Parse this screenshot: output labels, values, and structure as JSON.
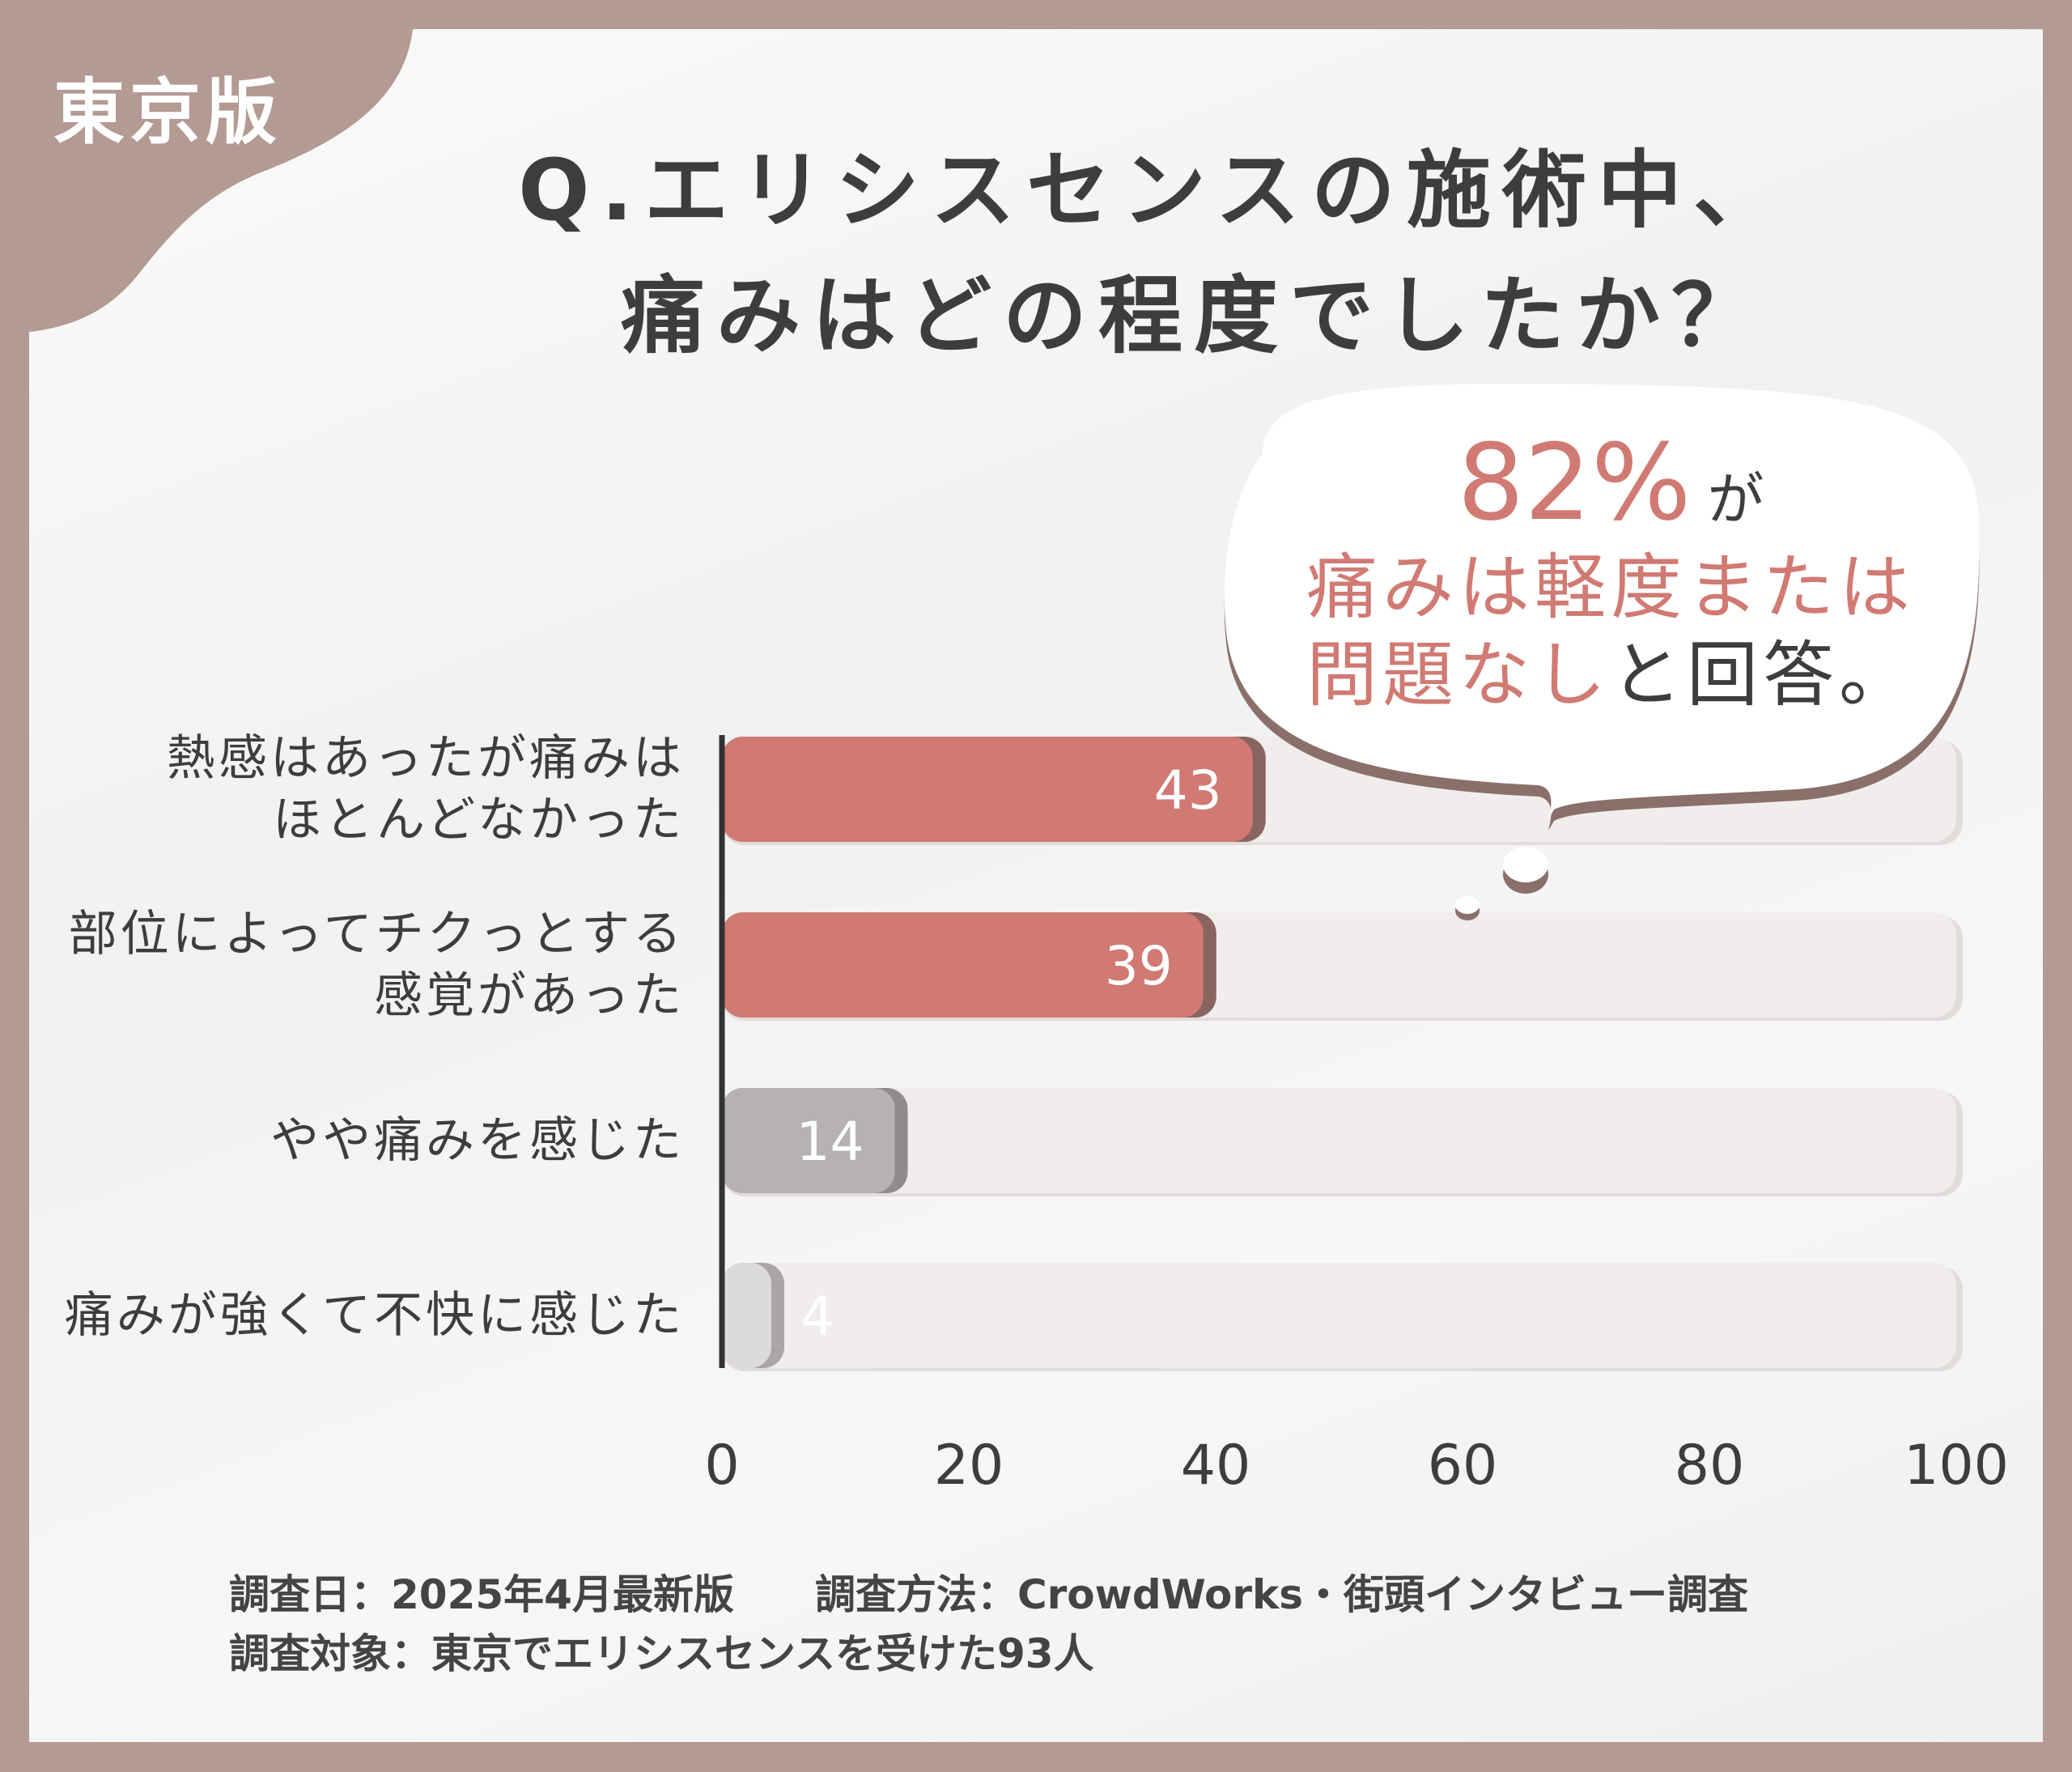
{
  "badge": "東京版",
  "title_line1": "Q.エリシスセンスの施術中、",
  "title_line2": "痛みはどの程度でしたか？",
  "callout": {
    "percent": "82%",
    "particle": "が",
    "line2": "痛みは軽度または",
    "line3_highlight": "問題なし",
    "line3_rest": "と回答。"
  },
  "footer": {
    "line1": "調査日：2025年4月最新版　　調査方法：CrowdWorks・街頭インタビュー調査",
    "line2": "調査対象：東京でエリシスセンスを受けた93人"
  },
  "colors": {
    "frame": "#b39a92",
    "accent": "#d07a73",
    "gray": "#b5b2b1",
    "light": "#dcdada",
    "track": "#f1eded"
  },
  "chart_data": {
    "type": "bar",
    "orientation": "horizontal",
    "categories": [
      "熱感はあったが痛みは\nほとんどなかった",
      "部位によってチクっとする\n感覚があった",
      "やや痛みを感じた",
      "痛みが強くて不快に感じた"
    ],
    "values": [
      43,
      39,
      14,
      4
    ],
    "xlim": [
      0,
      100
    ],
    "xticks": [
      "0",
      "20",
      "40",
      "60",
      "80",
      "100"
    ],
    "bar_colors": [
      "#d07a73",
      "#d07a73",
      "#b5b2b1",
      "#dcdada"
    ],
    "grid": false
  }
}
